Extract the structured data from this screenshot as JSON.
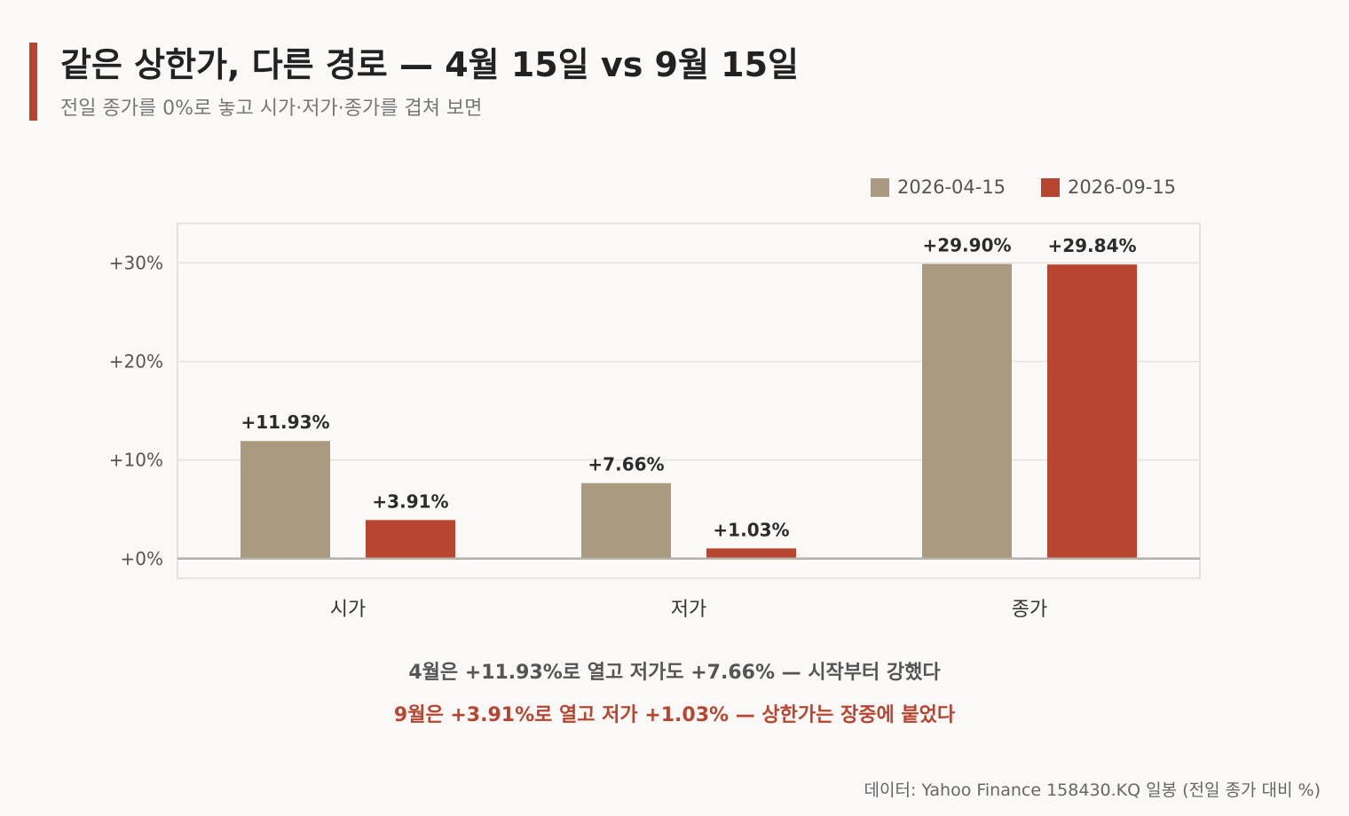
{
  "header": {
    "title": "같은 상한가, 다른 경로 — 4월 15일 vs 9월 15일",
    "subtitle": "전일 종가를 0%로 놓고 시가·저가·종가를 겹쳐 보면"
  },
  "colors": {
    "accent": "#b8452f",
    "april": "#a99a80",
    "september": "#b8452f",
    "grid": "#e6e3de",
    "baseline": "#b5b0a8",
    "frame": "#e0ddd8"
  },
  "legend": {
    "items": [
      {
        "label": "2026-04-15",
        "color": "#a99a80"
      },
      {
        "label": "2026-09-15",
        "color": "#b8452f"
      }
    ]
  },
  "chart_data": {
    "type": "bar",
    "categories": [
      "시가",
      "저가",
      "종가"
    ],
    "series": [
      {
        "name": "2026-04-15",
        "values": [
          11.93,
          7.66,
          29.9
        ],
        "labels": [
          "+11.93%",
          "+7.66%",
          "+29.90%"
        ]
      },
      {
        "name": "2026-09-15",
        "values": [
          3.91,
          1.03,
          29.84
        ],
        "labels": [
          "+3.91%",
          "+1.03%",
          "+29.84%"
        ]
      }
    ],
    "yticks": [
      0,
      10,
      20,
      30
    ],
    "ytick_labels": [
      "+0%",
      "+10%",
      "+20%",
      "+30%"
    ],
    "ylim": [
      -2,
      34
    ],
    "grid": true,
    "legend_position": "top-right"
  },
  "captions": {
    "line1": "4월은 +11.93%로 열고 저가도 +7.66% — 시작부터 강했다",
    "line2": "9월은 +3.91%로 열고 저가 +1.03% — 상한가는 장중에 붙었다"
  },
  "source": "데이터: Yahoo Finance 158430.KQ 일봉 (전일 종가 대비 %)"
}
